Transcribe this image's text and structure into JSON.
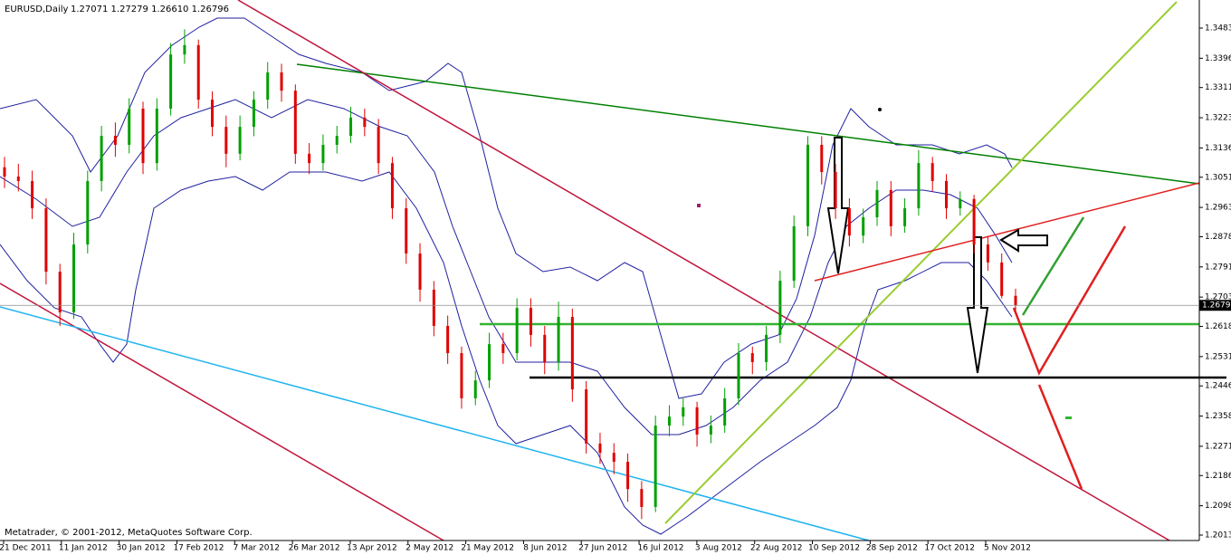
{
  "chart_data": {
    "type": "candlestick",
    "title": "EURUSD,Daily",
    "ohlc_text": "1.27071 1.27279 1.26610 1.26796",
    "footer": "Metatrader, © 2001-2012, MetaQuotes Software Corp.",
    "up_color": "#00a000",
    "down_color": "#e00000",
    "x_labels": [
      "21 Dec 2011",
      "11 Jan 2012",
      "30 Jan 2012",
      "17 Feb 2012",
      "7 Mar 2012",
      "26 Mar 2012",
      "13 Apr 2012",
      "2 May 2012",
      "21 May 2012",
      "8 Jun 2012",
      "27 Jun 2012",
      "16 Jul 2012",
      "3 Aug 2012",
      "22 Aug 2012",
      "10 Sep 2012",
      "28 Sep 2012",
      "17 Oct 2012",
      "5 Nov 2012"
    ],
    "ylim": [
      1.20135,
      1.34835
    ],
    "yticks": [
      1.34835,
      {
        "value": 1.3396,
        "label": "1.33960"
      },
      {
        "value": 1.3311,
        "label": "1.33110"
      },
      1.32235,
      {
        "value": 1.3136,
        "label": "1.31360"
      },
      {
        "value": 1.3051,
        "label": "1.30510"
      },
      1.29635,
      1.28785,
      {
        "value": 1.2791,
        "label": "1.27910"
      },
      1.27035,
      1.26185,
      {
        "value": 1.2531,
        "label": "1.25310"
      },
      {
        "value": 1.2446,
        "label": "1.24460"
      },
      1.23585,
      {
        "value": 1.2271,
        "label": "1.22710"
      },
      {
        "value": 1.2186,
        "label": "1.21860"
      },
      1.20985,
      1.20135
    ],
    "open": [
      1.308,
      1.3053,
      1.304,
      1.2961,
      1.2777,
      1.2659,
      1.2856,
      1.304,
      1.3171,
      1.3145,
      1.325,
      1.3092,
      1.325,
      1.3407,
      1.3434,
      1.3276,
      1.3197,
      1.3119,
      1.3197,
      1.3276,
      1.3355,
      1.3302,
      1.3119,
      1.3092,
      1.3145,
      1.3171,
      1.3224,
      1.3197,
      1.3092,
      1.2961,
      1.283,
      1.2725,
      1.262,
      1.2541,
      1.241,
      1.2462,
      1.2567,
      1.2541,
      1.2672,
      1.2594,
      1.2515,
      1.2646,
      1.2436,
      1.2279,
      1.2252,
      1.2226,
      1.2147,
      1.2095,
      1.2331,
      1.2357,
      1.2384,
      1.2305,
      1.2331,
      1.241,
      1.2541,
      1.2515,
      1.2594,
      1.2751,
      1.2909,
      1.3145,
      1.3066,
      1.2961,
      1.2882,
      1.2935,
      1.3014,
      1.2909,
      1.2961,
      1.3092,
      1.304,
      1.2961,
      1.2988,
      1.2856,
      1.2804,
      1.27071
    ],
    "high": [
      1.311,
      1.309,
      1.307,
      1.299,
      1.28,
      1.289,
      1.307,
      1.32,
      1.321,
      1.328,
      1.327,
      1.328,
      1.344,
      1.348,
      1.345,
      1.33,
      1.323,
      1.323,
      1.33,
      1.3385,
      1.338,
      1.332,
      1.315,
      1.3175,
      1.32,
      1.3255,
      1.325,
      1.322,
      1.311,
      1.299,
      1.286,
      1.275,
      1.265,
      1.256,
      1.249,
      1.26,
      1.26,
      1.27,
      1.27,
      1.262,
      1.269,
      1.267,
      1.246,
      1.231,
      1.228,
      1.225,
      1.217,
      1.236,
      1.239,
      1.241,
      1.24,
      1.236,
      1.244,
      1.257,
      1.256,
      1.262,
      1.278,
      1.294,
      1.317,
      1.317,
      1.309,
      1.299,
      1.296,
      1.304,
      1.304,
      1.299,
      1.313,
      1.311,
      1.306,
      1.301,
      1.3,
      1.288,
      1.283,
      1.27279
    ],
    "low": [
      1.302,
      1.301,
      1.293,
      1.274,
      1.262,
      1.264,
      1.283,
      1.301,
      1.311,
      1.312,
      1.306,
      1.307,
      1.323,
      1.338,
      1.325,
      1.317,
      1.308,
      1.31,
      1.317,
      1.325,
      1.327,
      1.309,
      1.306,
      1.307,
      1.312,
      1.315,
      1.317,
      1.306,
      1.293,
      1.28,
      1.269,
      1.259,
      1.251,
      1.238,
      1.239,
      1.244,
      1.251,
      1.252,
      1.256,
      1.248,
      1.249,
      1.24,
      1.225,
      1.222,
      1.219,
      1.211,
      1.206,
      1.208,
      1.23,
      1.233,
      1.227,
      1.228,
      1.231,
      1.239,
      1.248,
      1.249,
      1.257,
      1.273,
      1.288,
      1.303,
      1.293,
      1.285,
      1.286,
      1.291,
      1.288,
      1.289,
      1.294,
      1.301,
      1.293,
      1.294,
      1.283,
      1.278,
      1.27,
      1.2661
    ],
    "close": [
      1.3053,
      1.304,
      1.2961,
      1.2777,
      1.2659,
      1.2856,
      1.304,
      1.3171,
      1.3145,
      1.325,
      1.3092,
      1.325,
      1.3407,
      1.3434,
      1.3276,
      1.3197,
      1.3119,
      1.3197,
      1.3276,
      1.3355,
      1.3302,
      1.3119,
      1.3092,
      1.3145,
      1.3171,
      1.3224,
      1.3197,
      1.3092,
      1.2961,
      1.283,
      1.2725,
      1.262,
      1.2541,
      1.241,
      1.2462,
      1.2567,
      1.2541,
      1.2672,
      1.2594,
      1.2515,
      1.2646,
      1.2436,
      1.2279,
      1.2252,
      1.2226,
      1.2147,
      1.2095,
      1.2331,
      1.2357,
      1.2384,
      1.2305,
      1.2331,
      1.241,
      1.2541,
      1.2515,
      1.2594,
      1.2751,
      1.2909,
      1.3145,
      1.3066,
      1.2961,
      1.2882,
      1.2935,
      1.3014,
      1.2909,
      1.2961,
      1.3092,
      1.304,
      1.2961,
      1.2988,
      1.2856,
      1.2804,
      1.27071,
      1.26796
    ]
  }
}
